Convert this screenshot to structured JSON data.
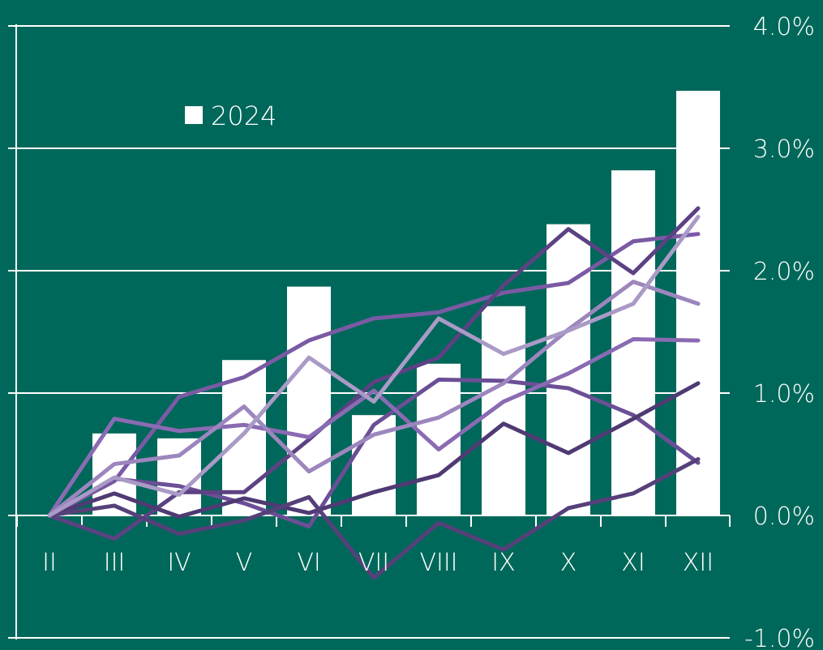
{
  "chart_data": {
    "type": "bar",
    "categories": [
      "II",
      "III",
      "IV",
      "V",
      "VI",
      "VII",
      "VIII",
      "IX",
      "X",
      "XI",
      "XII"
    ],
    "y_ticks": [
      "4.0%",
      "3.0%",
      "2.0%",
      "1.0%",
      "0.0%",
      "-1.0%"
    ],
    "y_tick_values": [
      4,
      3,
      2,
      1,
      0,
      -1
    ],
    "ylim": [
      -1,
      4
    ],
    "bar_series": {
      "name": "2024",
      "values": [
        null,
        0.67,
        0.63,
        1.27,
        1.87,
        0.82,
        1.24,
        1.71,
        2.38,
        2.82,
        3.47
      ]
    },
    "line_series": [
      {
        "color": "#7a5aa4",
        "values": [
          0,
          0.28,
          0.97,
          1.13,
          1.43,
          1.61,
          1.66,
          1.82,
          1.9,
          2.24,
          2.3
        ]
      },
      {
        "color": "#6b4f96",
        "values": [
          0,
          0.3,
          0.24,
          0.1,
          -0.09,
          0.74,
          1.11,
          1.1,
          1.04,
          0.82,
          0.43
        ]
      },
      {
        "color": "#5c4283",
        "values": [
          0,
          -0.19,
          0.19,
          0.19,
          0.62,
          1.09,
          1.29,
          1.88,
          2.34,
          1.98,
          2.51
        ]
      },
      {
        "color": "#8a6bb3",
        "values": [
          0,
          0.79,
          0.69,
          0.74,
          0.64,
          1.02,
          0.54,
          0.93,
          1.16,
          1.44,
          1.43
        ]
      },
      {
        "color": "#4f3a73",
        "values": [
          0,
          0.18,
          -0.01,
          0.14,
          0.02,
          0.19,
          0.33,
          0.75,
          0.51,
          0.79,
          1.08
        ]
      },
      {
        "color": "#56407a",
        "values": [
          0,
          0.08,
          -0.15,
          -0.04,
          0.15,
          -0.51,
          -0.06,
          -0.28,
          0.06,
          0.18,
          0.46
        ]
      },
      {
        "color": "#9c86bd",
        "values": [
          0,
          0.42,
          0.49,
          0.89,
          0.36,
          0.66,
          0.8,
          1.08,
          1.52,
          1.91,
          1.73
        ]
      },
      {
        "color": "#aa9ac6",
        "values": [
          0,
          0.31,
          0.17,
          0.67,
          1.29,
          0.93,
          1.61,
          1.32,
          1.51,
          1.73,
          2.44
        ]
      }
    ],
    "legend": [
      {
        "label": "2024",
        "color": "#ffffff"
      }
    ],
    "legend_position": "top-left",
    "grid": true,
    "colors": {
      "background": "#00685a",
      "bars": "#ffffff",
      "axis": "#ffffff"
    }
  }
}
